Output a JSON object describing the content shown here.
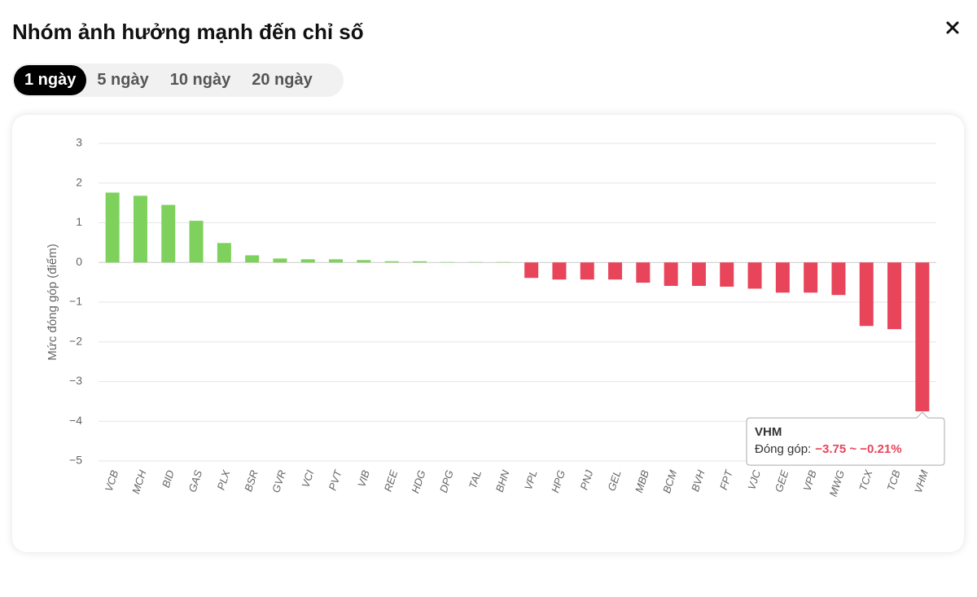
{
  "header": {
    "title": "Nhóm ảnh hưởng mạnh đến chỉ số"
  },
  "tabs": [
    "1 ngày",
    "5 ngày",
    "10 ngày",
    "20 ngày"
  ],
  "chart_data": {
    "type": "bar",
    "y_label": "Mức đóng góp (điểm)",
    "categories": [
      "VCB",
      "MCH",
      "BID",
      "GAS",
      "PLX",
      "BSR",
      "GVR",
      "VCI",
      "PVT",
      "VIB",
      "REE",
      "HDG",
      "DPG",
      "TAL",
      "BHN",
      "VPL",
      "HPG",
      "PNJ",
      "GEL",
      "MBB",
      "BCM",
      "BVH",
      "FPT",
      "VJC",
      "GEE",
      "VPB",
      "MWG",
      "TCX",
      "TCB",
      "VHM"
    ],
    "values": [
      1.76,
      1.68,
      1.45,
      1.05,
      0.49,
      0.18,
      0.1,
      0.08,
      0.08,
      0.06,
      0.03,
      0.03,
      0.01,
      0.01,
      0.01,
      -0.39,
      -0.43,
      -0.43,
      -0.43,
      -0.51,
      -0.59,
      -0.59,
      -0.61,
      -0.66,
      -0.76,
      -0.76,
      -0.82,
      -1.6,
      -1.68,
      -3.75
    ],
    "colors": {
      "positive": "#7ed15c",
      "negative": "#e8445a"
    },
    "ylim": [
      -5,
      3
    ],
    "yticks": [
      3,
      2,
      1,
      0,
      {
        "value": -1,
        "label": "−1"
      },
      {
        "value": -2,
        "label": "−2"
      },
      {
        "value": -3,
        "label": "−3"
      },
      {
        "value": -4,
        "label": "−4"
      },
      {
        "value": -5,
        "label": "−5"
      }
    ],
    "grid": true
  },
  "tooltip": {
    "label": "Đóng góp:",
    "value": "−3.75 ~ −0.21%"
  }
}
